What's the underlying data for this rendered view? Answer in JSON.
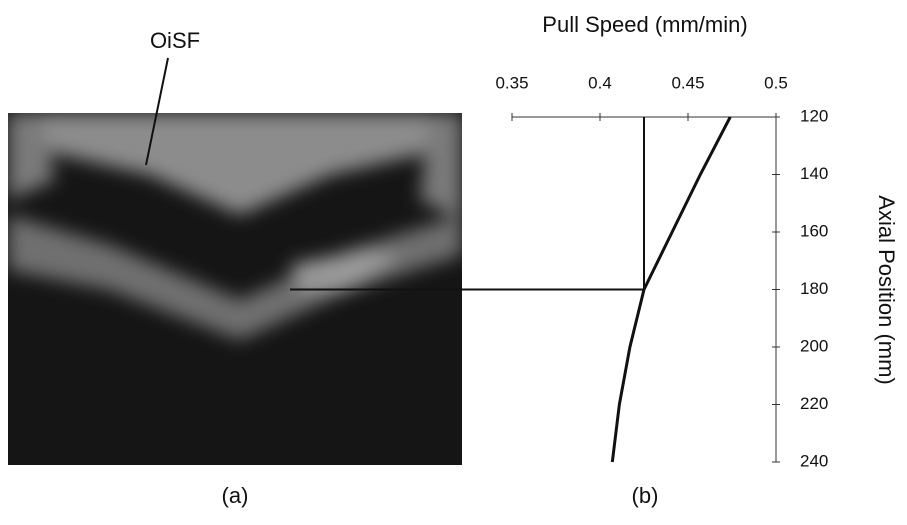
{
  "chart_data": {
    "type": "line",
    "title": "Pull Speed (mm/min)",
    "y_label": "Axial Position (mm)",
    "annotation": "OiSF",
    "panel_labels": [
      "(a)",
      "(b)"
    ],
    "x": [
      120,
      140,
      160,
      180,
      200,
      220,
      240
    ],
    "values": [
      0.474,
      0.457,
      0.441,
      0.425,
      0.417,
      0.411,
      0.407
    ],
    "color": "#111111",
    "xlim": [
      0.35,
      0.5
    ],
    "xticks": [
      0.35,
      0.4,
      0.45,
      0.5
    ],
    "ylim": [
      120,
      240
    ],
    "yticks": [
      120,
      140,
      160,
      180,
      200,
      220,
      240
    ],
    "marker": {
      "position": 180,
      "speed": 0.425
    }
  }
}
